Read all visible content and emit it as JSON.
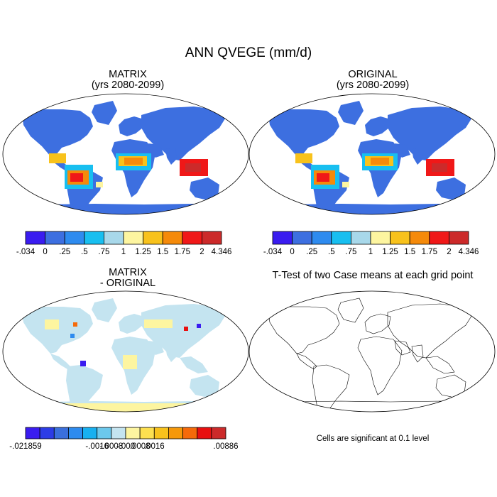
{
  "title": "ANN QVEGE (mm/d)",
  "panels": {
    "matrix": {
      "title": "MATRIX",
      "subtitle": "(yrs 2080-2099)"
    },
    "original": {
      "title": "ORIGINAL",
      "subtitle": "(yrs 2080-2099)"
    },
    "diff": {
      "title": "MATRIX",
      "subtitle": "- ORIGINAL"
    },
    "ttest": {
      "title": "T-Test of two Case means at each grid point",
      "note": "Cells are significant at 0.1 level"
    }
  },
  "colorbars": {
    "main": {
      "colors": [
        "#3a1cf0",
        "#3d6fe0",
        "#2e8bef",
        "#18bff0",
        "#a8d8ea",
        "#fdf5a0",
        "#f8c21c",
        "#f58a0a",
        "#f01818",
        "#cc2a2a"
      ],
      "labels": [
        "-.034",
        "0",
        ".25",
        ".5",
        ".75",
        "1",
        "1.25",
        "1.5",
        "1.75",
        "2",
        "4.346"
      ]
    },
    "diff": {
      "colors": [
        "#3a1cf0",
        "#2c3ce6",
        "#3a6fdc",
        "#2e8bef",
        "#18b0f0",
        "#6cc8ec",
        "#c4e4f0",
        "#fdf5a0",
        "#fde050",
        "#f8c21c",
        "#f5980a",
        "#f56a0a",
        "#e81010",
        "#cc2a2a"
      ],
      "labels": [
        "-.021859",
        "-.0016",
        "-.0008",
        "-.000",
        ".0008",
        ".0016",
        ".00886"
      ]
    }
  }
}
